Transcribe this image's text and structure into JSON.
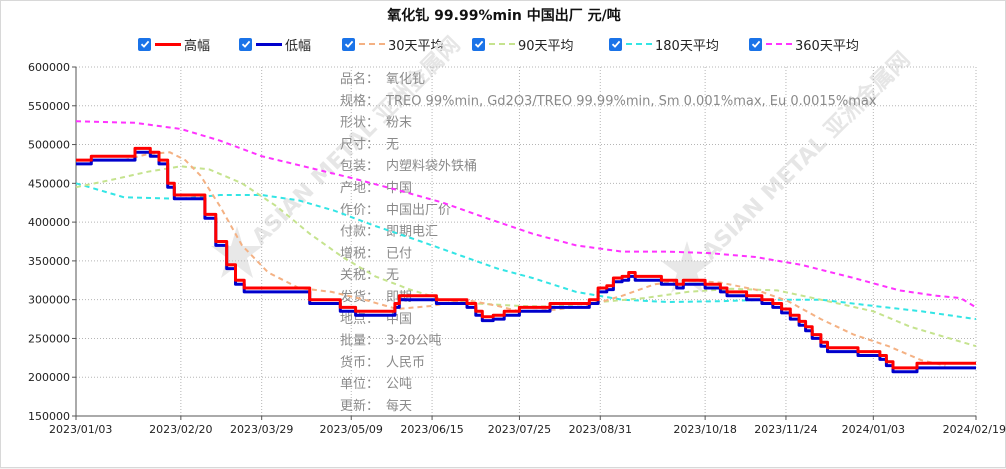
{
  "title": "氧化钆 99.99%min 中国出厂 元/吨",
  "legend": [
    {
      "label": "高幅",
      "color": "#ff0000",
      "style": "solid"
    },
    {
      "label": "低幅",
      "color": "#0000cc",
      "style": "solid"
    },
    {
      "label": "30天平均",
      "color": "#f4b183",
      "style": "dash"
    },
    {
      "label": "90天平均",
      "color": "#c5e38e",
      "style": "dash"
    },
    {
      "label": "180天平均",
      "color": "#33e5e5",
      "style": "dash"
    },
    {
      "label": "360天平均",
      "color": "#ff33ff",
      "style": "dash"
    }
  ],
  "info": [
    {
      "k": "品名：",
      "v": "氧化钆"
    },
    {
      "k": "规格：",
      "v": "TREO 99%min, Gd2O3/TREO 99.99%min, Sm 0.001%max, Eu 0.0015%max"
    },
    {
      "k": "形状：",
      "v": "粉末"
    },
    {
      "k": "尺寸：",
      "v": "无"
    },
    {
      "k": "包装：",
      "v": "内塑料袋外铁桶"
    },
    {
      "k": "产地：",
      "v": "中国"
    },
    {
      "k": "作价：",
      "v": "中国出厂价"
    },
    {
      "k": "付款：",
      "v": "即期电汇"
    },
    {
      "k": "增税：",
      "v": "已付"
    },
    {
      "k": "关税：",
      "v": "无"
    },
    {
      "k": "发货：",
      "v": "即期"
    },
    {
      "k": "地点：",
      "v": "中国"
    },
    {
      "k": "批量：",
      "v": "3-20公吨"
    },
    {
      "k": "货币：",
      "v": "人民币"
    },
    {
      "k": "单位：",
      "v": "公吨"
    },
    {
      "k": "更新：",
      "v": "每天"
    }
  ],
  "watermark": "ASIAN METAL 亚洲金属网",
  "chart_data": {
    "type": "line",
    "title": "氧化钆 99.99%min 中国出厂 元/吨",
    "x_ticks": [
      "2023/01/03",
      "2023/02/20",
      "2023/03/29",
      "2023/05/09",
      "2023/06/15",
      "2023/07/25",
      "2023/08/31",
      "2023/10/18",
      "2023/11/24",
      "2024/01/03",
      "2024/02/19"
    ],
    "y_ticks": [
      150000,
      200000,
      250000,
      300000,
      350000,
      400000,
      450000,
      500000,
      550000,
      600000
    ],
    "ylim": [
      150000,
      600000
    ],
    "grid": true,
    "legend_position": "top",
    "series": [
      {
        "name": "高幅",
        "color": "#ff0000",
        "style": "solid",
        "points": [
          [
            "2023/01/03",
            480000
          ],
          [
            "2023/01/10",
            485000
          ],
          [
            "2023/01/25",
            485000
          ],
          [
            "2023/01/30",
            495000
          ],
          [
            "2023/02/06",
            490000
          ],
          [
            "2023/02/10",
            480000
          ],
          [
            "2023/02/14",
            450000
          ],
          [
            "2023/02/17",
            435000
          ],
          [
            "2023/02/27",
            435000
          ],
          [
            "2023/03/03",
            410000
          ],
          [
            "2023/03/08",
            375000
          ],
          [
            "2023/03/13",
            345000
          ],
          [
            "2023/03/17",
            325000
          ],
          [
            "2023/03/21",
            315000
          ],
          [
            "2023/04/18",
            315000
          ],
          [
            "2023/04/20",
            300000
          ],
          [
            "2023/05/02",
            300000
          ],
          [
            "2023/05/04",
            290000
          ],
          [
            "2023/05/11",
            285000
          ],
          [
            "2023/05/25",
            285000
          ],
          [
            "2023/05/29",
            295000
          ],
          [
            "2023/05/31",
            305000
          ],
          [
            "2023/06/15",
            305000
          ],
          [
            "2023/06/17",
            300000
          ],
          [
            "2023/06/27",
            300000
          ],
          [
            "2023/07/01",
            295000
          ],
          [
            "2023/07/05",
            285000
          ],
          [
            "2023/07/08",
            278000
          ],
          [
            "2023/07/13",
            280000
          ],
          [
            "2023/07/18",
            285000
          ],
          [
            "2023/07/25",
            290000
          ],
          [
            "2023/08/06",
            290000
          ],
          [
            "2023/08/08",
            295000
          ],
          [
            "2023/08/22",
            295000
          ],
          [
            "2023/08/26",
            300000
          ],
          [
            "2023/08/30",
            315000
          ],
          [
            "2023/09/03",
            318000
          ],
          [
            "2023/09/06",
            328000
          ],
          [
            "2023/09/10",
            330000
          ],
          [
            "2023/09/13",
            335000
          ],
          [
            "2023/09/16",
            330000
          ],
          [
            "2023/09/23",
            330000
          ],
          [
            "2023/09/28",
            325000
          ],
          [
            "2023/10/05",
            320000
          ],
          [
            "2023/10/08",
            325000
          ],
          [
            "2023/10/14",
            325000
          ],
          [
            "2023/10/18",
            320000
          ],
          [
            "2023/10/25",
            315000
          ],
          [
            "2023/10/28",
            310000
          ],
          [
            "2023/11/06",
            305000
          ],
          [
            "2023/11/13",
            300000
          ],
          [
            "2023/11/18",
            295000
          ],
          [
            "2023/11/22",
            288000
          ],
          [
            "2023/11/26",
            280000
          ],
          [
            "2023/11/30",
            272000
          ],
          [
            "2023/12/03",
            265000
          ],
          [
            "2023/12/06",
            255000
          ],
          [
            "2023/12/10",
            245000
          ],
          [
            "2023/12/13",
            238000
          ],
          [
            "2023/12/22",
            238000
          ],
          [
            "2023/12/27",
            233000
          ],
          [
            "2024/01/03",
            233000
          ],
          [
            "2024/01/06",
            228000
          ],
          [
            "2024/01/09",
            220000
          ],
          [
            "2024/01/12",
            212000
          ],
          [
            "2024/01/18",
            212000
          ],
          [
            "2024/01/23",
            218000
          ],
          [
            "2024/02/19",
            218000
          ]
        ]
      },
      {
        "name": "低幅",
        "color": "#0000cc",
        "style": "solid",
        "points": [
          [
            "2023/01/03",
            475000
          ],
          [
            "2023/01/10",
            480000
          ],
          [
            "2023/01/25",
            480000
          ],
          [
            "2023/01/30",
            490000
          ],
          [
            "2023/02/06",
            485000
          ],
          [
            "2023/02/10",
            475000
          ],
          [
            "2023/02/14",
            445000
          ],
          [
            "2023/02/17",
            430000
          ],
          [
            "2023/02/27",
            430000
          ],
          [
            "2023/03/03",
            405000
          ],
          [
            "2023/03/08",
            370000
          ],
          [
            "2023/03/13",
            340000
          ],
          [
            "2023/03/17",
            320000
          ],
          [
            "2023/03/21",
            310000
          ],
          [
            "2023/04/18",
            310000
          ],
          [
            "2023/04/20",
            295000
          ],
          [
            "2023/05/02",
            295000
          ],
          [
            "2023/05/04",
            285000
          ],
          [
            "2023/05/11",
            280000
          ],
          [
            "2023/05/25",
            280000
          ],
          [
            "2023/05/29",
            290000
          ],
          [
            "2023/05/31",
            300000
          ],
          [
            "2023/06/15",
            300000
          ],
          [
            "2023/06/17",
            295000
          ],
          [
            "2023/06/27",
            295000
          ],
          [
            "2023/07/01",
            290000
          ],
          [
            "2023/07/05",
            280000
          ],
          [
            "2023/07/08",
            273000
          ],
          [
            "2023/07/13",
            275000
          ],
          [
            "2023/07/18",
            280000
          ],
          [
            "2023/07/25",
            285000
          ],
          [
            "2023/08/06",
            285000
          ],
          [
            "2023/08/08",
            290000
          ],
          [
            "2023/08/22",
            290000
          ],
          [
            "2023/08/26",
            295000
          ],
          [
            "2023/08/30",
            310000
          ],
          [
            "2023/09/03",
            313000
          ],
          [
            "2023/09/06",
            323000
          ],
          [
            "2023/09/10",
            325000
          ],
          [
            "2023/09/13",
            330000
          ],
          [
            "2023/09/16",
            325000
          ],
          [
            "2023/09/23",
            325000
          ],
          [
            "2023/09/28",
            320000
          ],
          [
            "2023/10/05",
            315000
          ],
          [
            "2023/10/08",
            320000
          ],
          [
            "2023/10/14",
            320000
          ],
          [
            "2023/10/18",
            315000
          ],
          [
            "2023/10/25",
            310000
          ],
          [
            "2023/10/28",
            305000
          ],
          [
            "2023/11/06",
            300000
          ],
          [
            "2023/11/13",
            295000
          ],
          [
            "2023/11/18",
            290000
          ],
          [
            "2023/11/22",
            283000
          ],
          [
            "2023/11/26",
            275000
          ],
          [
            "2023/11/30",
            267000
          ],
          [
            "2023/12/03",
            260000
          ],
          [
            "2023/12/06",
            250000
          ],
          [
            "2023/12/10",
            240000
          ],
          [
            "2023/12/13",
            233000
          ],
          [
            "2023/12/22",
            233000
          ],
          [
            "2023/12/27",
            228000
          ],
          [
            "2024/01/03",
            228000
          ],
          [
            "2024/01/06",
            223000
          ],
          [
            "2024/01/09",
            215000
          ],
          [
            "2024/01/12",
            207000
          ],
          [
            "2024/01/18",
            207000
          ],
          [
            "2024/01/23",
            212000
          ],
          [
            "2024/02/19",
            212000
          ]
        ]
      },
      {
        "name": "30天平均",
        "color": "#f4b183",
        "style": "dash",
        "points": [
          [
            "2023/01/25",
            480000
          ],
          [
            "2023/02/05",
            488000
          ],
          [
            "2023/02/15",
            490000
          ],
          [
            "2023/02/22",
            480000
          ],
          [
            "2023/03/01",
            460000
          ],
          [
            "2023/03/10",
            420000
          ],
          [
            "2023/03/20",
            370000
          ],
          [
            "2023/04/01",
            335000
          ],
          [
            "2023/04/15",
            315000
          ],
          [
            "2023/04/30",
            310000
          ],
          [
            "2023/05/15",
            300000
          ],
          [
            "2023/05/30",
            288000
          ],
          [
            "2023/06/15",
            292000
          ],
          [
            "2023/06/30",
            300000
          ],
          [
            "2023/07/15",
            292000
          ],
          [
            "2023/07/25",
            285000
          ],
          [
            "2023/08/10",
            287000
          ],
          [
            "2023/08/25",
            292000
          ],
          [
            "2023/09/10",
            305000
          ],
          [
            "2023/09/25",
            320000
          ],
          [
            "2023/10/10",
            325000
          ],
          [
            "2023/10/25",
            322000
          ],
          [
            "2023/11/10",
            313000
          ],
          [
            "2023/11/25",
            298000
          ],
          [
            "2023/12/10",
            275000
          ],
          [
            "2023/12/25",
            255000
          ],
          [
            "2024/01/10",
            240000
          ],
          [
            "2024/01/25",
            222000
          ],
          [
            "2024/02/05",
            215000
          ]
        ]
      },
      {
        "name": "90天平均",
        "color": "#c5e38e",
        "style": "dash",
        "points": [
          [
            "2023/01/03",
            445000
          ],
          [
            "2023/01/20",
            455000
          ],
          [
            "2023/02/05",
            465000
          ],
          [
            "2023/02/20",
            472000
          ],
          [
            "2023/03/05",
            468000
          ],
          [
            "2023/03/20",
            450000
          ],
          [
            "2023/04/05",
            420000
          ],
          [
            "2023/04/20",
            385000
          ],
          [
            "2023/05/05",
            355000
          ],
          [
            "2023/05/20",
            330000
          ],
          [
            "2023/06/05",
            313000
          ],
          [
            "2023/06/20",
            300000
          ],
          [
            "2023/07/05",
            295000
          ],
          [
            "2023/07/25",
            292000
          ],
          [
            "2023/08/10",
            291000
          ],
          [
            "2023/08/31",
            297000
          ],
          [
            "2023/09/20",
            302000
          ],
          [
            "2023/10/10",
            310000
          ],
          [
            "2023/10/30",
            314000
          ],
          [
            "2023/11/20",
            312000
          ],
          [
            "2023/12/10",
            300000
          ],
          [
            "2024/01/03",
            285000
          ],
          [
            "2024/01/20",
            265000
          ],
          [
            "2024/02/19",
            240000
          ]
        ]
      },
      {
        "name": "180天平均",
        "color": "#33e5e5",
        "style": "dash",
        "points": [
          [
            "2023/01/03",
            450000
          ],
          [
            "2023/01/25",
            432000
          ],
          [
            "2023/02/20",
            430000
          ],
          [
            "2023/03/10",
            435000
          ],
          [
            "2023/03/29",
            435000
          ],
          [
            "2023/04/15",
            428000
          ],
          [
            "2023/05/01",
            415000
          ],
          [
            "2023/05/20",
            395000
          ],
          [
            "2023/06/10",
            375000
          ],
          [
            "2023/06/30",
            355000
          ],
          [
            "2023/07/15",
            340000
          ],
          [
            "2023/07/31",
            328000
          ],
          [
            "2023/08/20",
            310000
          ],
          [
            "2023/09/10",
            300000
          ],
          [
            "2023/10/01",
            297000
          ],
          [
            "2023/10/25",
            298000
          ],
          [
            "2023/11/15",
            300000
          ],
          [
            "2023/12/10",
            300000
          ],
          [
            "2024/01/03",
            292000
          ],
          [
            "2024/01/25",
            285000
          ],
          [
            "2024/02/19",
            275000
          ]
        ]
      },
      {
        "name": "360天平均",
        "color": "#ff33ff",
        "style": "dash",
        "points": [
          [
            "2023/01/03",
            530000
          ],
          [
            "2023/01/30",
            528000
          ],
          [
            "2023/02/20",
            520000
          ],
          [
            "2023/03/10",
            505000
          ],
          [
            "2023/03/29",
            485000
          ],
          [
            "2023/04/20",
            470000
          ],
          [
            "2023/05/09",
            457000
          ],
          [
            "2023/06/01",
            440000
          ],
          [
            "2023/06/20",
            425000
          ],
          [
            "2023/07/10",
            405000
          ],
          [
            "2023/07/31",
            385000
          ],
          [
            "2023/08/20",
            370000
          ],
          [
            "2023/09/10",
            362000
          ],
          [
            "2023/09/30",
            362000
          ],
          [
            "2023/10/20",
            360000
          ],
          [
            "2023/11/10",
            355000
          ],
          [
            "2023/12/01",
            345000
          ],
          [
            "2023/12/25",
            328000
          ],
          [
            "2024/01/15",
            312000
          ],
          [
            "2024/02/01",
            305000
          ],
          [
            "2024/02/12",
            302000
          ],
          [
            "2024/02/19",
            290000
          ]
        ]
      }
    ]
  }
}
